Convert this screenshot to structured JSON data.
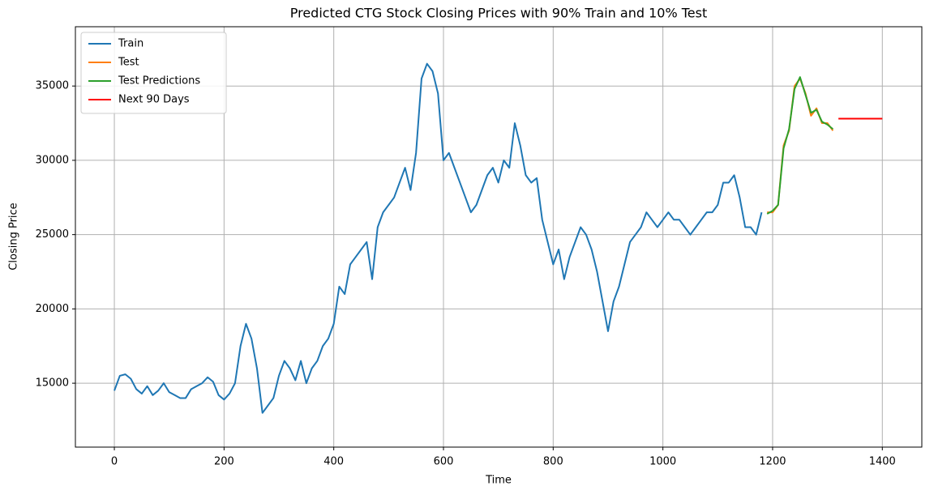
{
  "chart_data": {
    "type": "line",
    "title": "Predicted CTG Stock Closing Prices with 90% Train and 10% Test",
    "xlabel": "Time",
    "ylabel": "Closing Price",
    "x": [
      0,
      10,
      20,
      30,
      40,
      50,
      60,
      70,
      80,
      90,
      100,
      110,
      120,
      130,
      140,
      150,
      160,
      170,
      180,
      190,
      200,
      210,
      220,
      230,
      240,
      250,
      260,
      270,
      280,
      290,
      300,
      310,
      320,
      330,
      340,
      350,
      360,
      370,
      380,
      390,
      400,
      410,
      420,
      430,
      440,
      450,
      460,
      470,
      480,
      490,
      500,
      510,
      520,
      530,
      540,
      550,
      560,
      570,
      580,
      590,
      600,
      610,
      620,
      630,
      640,
      650,
      660,
      670,
      680,
      690,
      700,
      710,
      720,
      730,
      740,
      750,
      760,
      770,
      780,
      790,
      800,
      810,
      820,
      830,
      840,
      850,
      860,
      870,
      880,
      890,
      900,
      910,
      920,
      930,
      940,
      950,
      960,
      970,
      980,
      990,
      1000,
      1010,
      1020,
      1030,
      1040,
      1050,
      1060,
      1070,
      1080,
      1090,
      1100,
      1110,
      1120,
      1130,
      1140,
      1150,
      1160,
      1170,
      1180,
      1190,
      1200,
      1210,
      1220,
      1230,
      1240,
      1250,
      1260,
      1270,
      1280,
      1290,
      1300,
      1310,
      1320,
      1330,
      1340,
      1350,
      1360,
      1370,
      1380,
      1390,
      1400
    ],
    "series": [
      {
        "name": "Train",
        "color": "#1f77b4",
        "values": [
          14500,
          15500,
          15600,
          15300,
          14600,
          14300,
          14800,
          14200,
          14500,
          15000,
          14400,
          14200,
          14000,
          14000,
          14600,
          14800,
          15000,
          15400,
          15100,
          14200,
          13900,
          14300,
          15000,
          17500,
          19000,
          18000,
          16000,
          13000,
          13500,
          14000,
          15500,
          16500,
          16000,
          15200,
          16500,
          15000,
          16000,
          16500,
          17500,
          18000,
          19000,
          21500,
          21000,
          23000,
          23500,
          24000,
          24500,
          22000,
          25500,
          26500,
          27000,
          27500,
          28500,
          29500,
          28000,
          30500,
          35500,
          36500,
          36000,
          34500,
          30000,
          30500,
          29500,
          28500,
          27500,
          26500,
          27000,
          28000,
          29000,
          29500,
          28500,
          30000,
          29500,
          32500,
          31000,
          29000,
          28500,
          28800,
          26000,
          24500,
          23000,
          24000,
          22000,
          23500,
          24500,
          25500,
          25000,
          24000,
          22500,
          20500,
          18500,
          20500,
          21500,
          23000,
          24500,
          25000,
          25500,
          26500,
          26000,
          25500,
          26000,
          26500,
          26000,
          26000,
          25500,
          25000,
          25500,
          26000,
          26500,
          26500,
          27000,
          28500,
          28500,
          29000,
          27500,
          25500,
          25500,
          25000,
          26500,
          null,
          null,
          null,
          null,
          null,
          null,
          null,
          null,
          null,
          null,
          null,
          null,
          null,
          null,
          null,
          null,
          null,
          null,
          null,
          null,
          null,
          null
        ]
      },
      {
        "name": "Test",
        "color": "#ff7f0e",
        "values": [
          null,
          null,
          null,
          null,
          null,
          null,
          null,
          null,
          null,
          null,
          null,
          null,
          null,
          null,
          null,
          null,
          null,
          null,
          null,
          null,
          null,
          null,
          null,
          null,
          null,
          null,
          null,
          null,
          null,
          null,
          null,
          null,
          null,
          null,
          null,
          null,
          null,
          null,
          null,
          null,
          null,
          null,
          null,
          null,
          null,
          null,
          null,
          null,
          null,
          null,
          null,
          null,
          null,
          null,
          null,
          null,
          null,
          null,
          null,
          null,
          null,
          null,
          null,
          null,
          null,
          null,
          null,
          null,
          null,
          null,
          null,
          null,
          null,
          null,
          null,
          null,
          null,
          null,
          null,
          null,
          null,
          null,
          null,
          null,
          null,
          null,
          null,
          null,
          null,
          null,
          null,
          null,
          null,
          null,
          null,
          null,
          null,
          null,
          null,
          null,
          null,
          null,
          null,
          null,
          null,
          null,
          null,
          null,
          null,
          null,
          null,
          null,
          null,
          null,
          null,
          null,
          null,
          null,
          null,
          26500,
          26500,
          27000,
          31000,
          32000,
          35000,
          35500,
          34500,
          33000,
          33500,
          32500,
          32500,
          32000,
          null,
          null,
          null,
          null,
          null,
          null,
          null,
          null,
          null
        ]
      },
      {
        "name": "Test Predictions",
        "color": "#2ca02c",
        "values": [
          null,
          null,
          null,
          null,
          null,
          null,
          null,
          null,
          null,
          null,
          null,
          null,
          null,
          null,
          null,
          null,
          null,
          null,
          null,
          null,
          null,
          null,
          null,
          null,
          null,
          null,
          null,
          null,
          null,
          null,
          null,
          null,
          null,
          null,
          null,
          null,
          null,
          null,
          null,
          null,
          null,
          null,
          null,
          null,
          null,
          null,
          null,
          null,
          null,
          null,
          null,
          null,
          null,
          null,
          null,
          null,
          null,
          null,
          null,
          null,
          null,
          null,
          null,
          null,
          null,
          null,
          null,
          null,
          null,
          null,
          null,
          null,
          null,
          null,
          null,
          null,
          null,
          null,
          null,
          null,
          null,
          null,
          null,
          null,
          null,
          null,
          null,
          null,
          null,
          null,
          null,
          null,
          null,
          null,
          null,
          null,
          null,
          null,
          null,
          null,
          null,
          null,
          null,
          null,
          null,
          null,
          null,
          null,
          null,
          null,
          null,
          null,
          null,
          null,
          null,
          null,
          null,
          null,
          null,
          26400,
          26600,
          27000,
          30800,
          32100,
          34800,
          35600,
          34400,
          33200,
          33400,
          32600,
          32400,
          32100,
          null,
          null,
          null,
          null,
          null,
          null,
          null,
          null,
          null
        ]
      },
      {
        "name": "Next 90 Days",
        "color": "#ff0000",
        "values": [
          null,
          null,
          null,
          null,
          null,
          null,
          null,
          null,
          null,
          null,
          null,
          null,
          null,
          null,
          null,
          null,
          null,
          null,
          null,
          null,
          null,
          null,
          null,
          null,
          null,
          null,
          null,
          null,
          null,
          null,
          null,
          null,
          null,
          null,
          null,
          null,
          null,
          null,
          null,
          null,
          null,
          null,
          null,
          null,
          null,
          null,
          null,
          null,
          null,
          null,
          null,
          null,
          null,
          null,
          null,
          null,
          null,
          null,
          null,
          null,
          null,
          null,
          null,
          null,
          null,
          null,
          null,
          null,
          null,
          null,
          null,
          null,
          null,
          null,
          null,
          null,
          null,
          null,
          null,
          null,
          null,
          null,
          null,
          null,
          null,
          null,
          null,
          null,
          null,
          null,
          null,
          null,
          null,
          null,
          null,
          null,
          null,
          null,
          null,
          null,
          null,
          null,
          null,
          null,
          null,
          null,
          null,
          null,
          null,
          null,
          null,
          null,
          null,
          null,
          null,
          null,
          null,
          null,
          null,
          null,
          null,
          null,
          null,
          null,
          null,
          null,
          null,
          null,
          null,
          null,
          null,
          null,
          32800,
          32800,
          32800,
          32800,
          32800,
          32800,
          32800,
          32800,
          32800
        ]
      }
    ],
    "xlim": [
      -71,
      1472
    ],
    "xticks": [
      0,
      200,
      400,
      600,
      800,
      1000,
      1200,
      1400
    ],
    "ylim": [
      10700,
      38990
    ],
    "yticks": [
      15000,
      20000,
      25000,
      30000,
      35000
    ],
    "grid": true,
    "legend": "upper left"
  }
}
